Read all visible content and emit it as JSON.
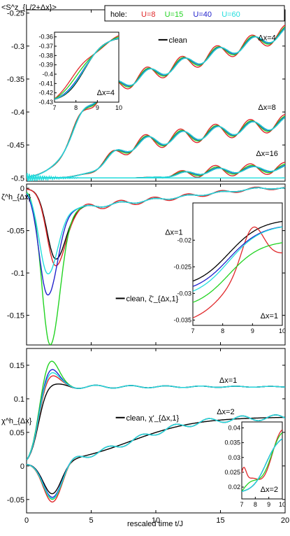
{
  "chart_data": {
    "type": "line",
    "xlabel": "rescaled time t/J",
    "legend": {
      "title": "hole:",
      "placement": "top",
      "entries": [
        {
          "label": "U=8",
          "color": "#e0282a"
        },
        {
          "label": "U=15",
          "color": "#22d322"
        },
        {
          "label": "U=40",
          "color": "#2222cc"
        },
        {
          "label": "U=60",
          "color": "#22dddd"
        }
      ]
    },
    "colors": {
      "clean": "#000000",
      "U=8": "#e0282a",
      "U=15": "#22d322",
      "U=40": "#2222cc",
      "U=60": "#22dddd"
    },
    "panels": [
      {
        "id": "top",
        "ylabel": "<S^z_{L/2+Δx}>",
        "xlim": [
          0,
          20
        ],
        "ylim": [
          -0.505,
          -0.245
        ],
        "yticks": [
          -0.5,
          -0.45,
          -0.4,
          -0.35,
          -0.3,
          -0.25
        ],
        "yticklabels": [
          "-0.5",
          "-0.45",
          "-0.4",
          "-0.35",
          "-0.3",
          "-0.25"
        ],
        "annotations": [
          "Δx=4",
          "Δx=8",
          "Δx=16"
        ],
        "clean_label": "clean",
        "inset": {
          "label": "Δx=4",
          "xlim": [
            7,
            10
          ],
          "ylim": [
            -0.43,
            -0.355
          ],
          "xticks": [
            "7",
            "8",
            "9",
            "10"
          ],
          "yticks": [
            "-0.36",
            "-0.37",
            "-0.38",
            "-0.39",
            "-0.4",
            "-0.41",
            "-0.42",
            "-0.43"
          ]
        }
      },
      {
        "id": "middle",
        "ylabel": "ζ^h_{Δx}",
        "xlim": [
          0,
          20
        ],
        "ylim": [
          -0.185,
          0.005
        ],
        "yticks": [
          0,
          -0.05,
          -0.1,
          -0.15
        ],
        "yticklabels": [
          "0",
          "-0.05",
          "-0.1",
          "-0.15"
        ],
        "annotations": [
          "Δx=1"
        ],
        "clean_label": "clean, ζ'_{Δx,1}",
        "inset": {
          "label": "Δx=1",
          "xlim": [
            7,
            10
          ],
          "ylim": [
            -0.036,
            -0.013
          ],
          "xticks": [
            "7",
            "8",
            "9",
            "10"
          ],
          "yticks": [
            "-0.02",
            "-0.025",
            "-0.03",
            "-0.035"
          ]
        }
      },
      {
        "id": "bottom",
        "ylabel": "χ^h_{Δx}",
        "xlim": [
          0,
          20
        ],
        "ylim": [
          -0.07,
          0.175
        ],
        "yticks": [
          0.15,
          0.1,
          0.05,
          0,
          -0.05
        ],
        "yticklabels": [
          "0.15",
          "0.1",
          "0.05",
          "0",
          "-0.05"
        ],
        "xticks": [
          "0",
          "5",
          "10",
          "15",
          "20"
        ],
        "annotations": [
          "Δx=1",
          "Δx=2"
        ],
        "clean_label": "clean, χ'_{Δx,1}",
        "inset": {
          "label": "Δx=2",
          "xlim": [
            7,
            10
          ],
          "ylim": [
            0.016,
            0.042
          ],
          "xticks": [
            "7",
            "8",
            "9",
            "10"
          ],
          "yticks": [
            "0.04",
            "0.035",
            "0.03",
            "0.025",
            "0.02"
          ]
        }
      }
    ]
  }
}
